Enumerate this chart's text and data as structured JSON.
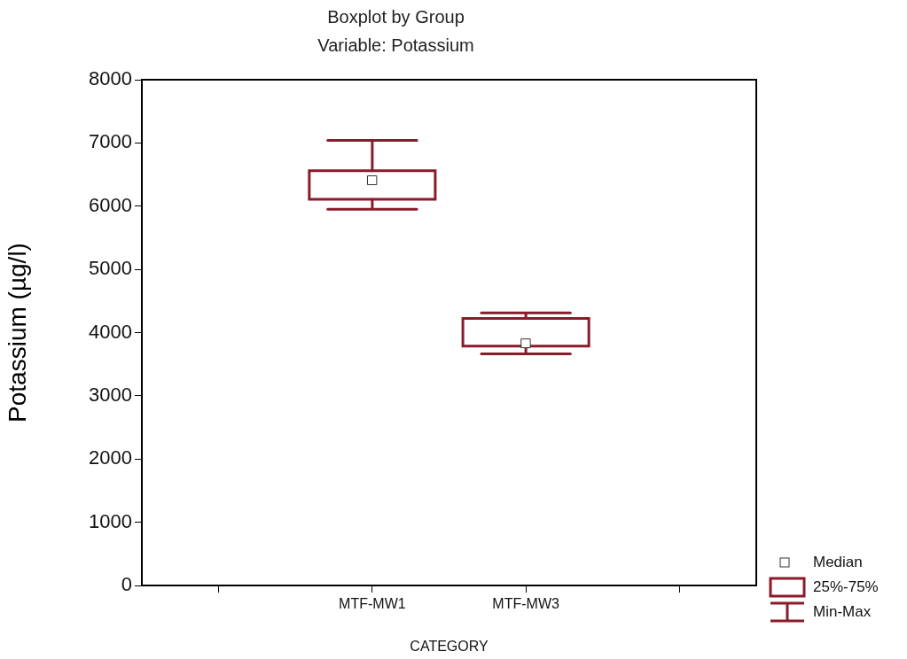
{
  "chart_data": {
    "type": "box",
    "title": "Boxplot by Group",
    "subtitle": "Variable: Potassium",
    "xlabel": "CATEGORY",
    "ylabel": "Potassium (µg/l)",
    "categories": [
      null,
      "MTF-MW1",
      "MTF-MW3",
      null
    ],
    "boxes": [
      null,
      {
        "low": 5950,
        "q1": 6110,
        "median": 6410,
        "q3": 6560,
        "high": 7040
      },
      {
        "low": 3665,
        "q1": 3785,
        "median": 3830,
        "q3": 4225,
        "high": 4310
      },
      null
    ],
    "color": "#8b1a2b",
    "ylim": [
      0,
      8000
    ],
    "yticks": [
      0,
      1000,
      2000,
      3000,
      4000,
      5000,
      6000,
      7000,
      8000
    ],
    "grid": false,
    "annotations": [
      "Median",
      "25%-75%",
      "Min-Max"
    ]
  }
}
